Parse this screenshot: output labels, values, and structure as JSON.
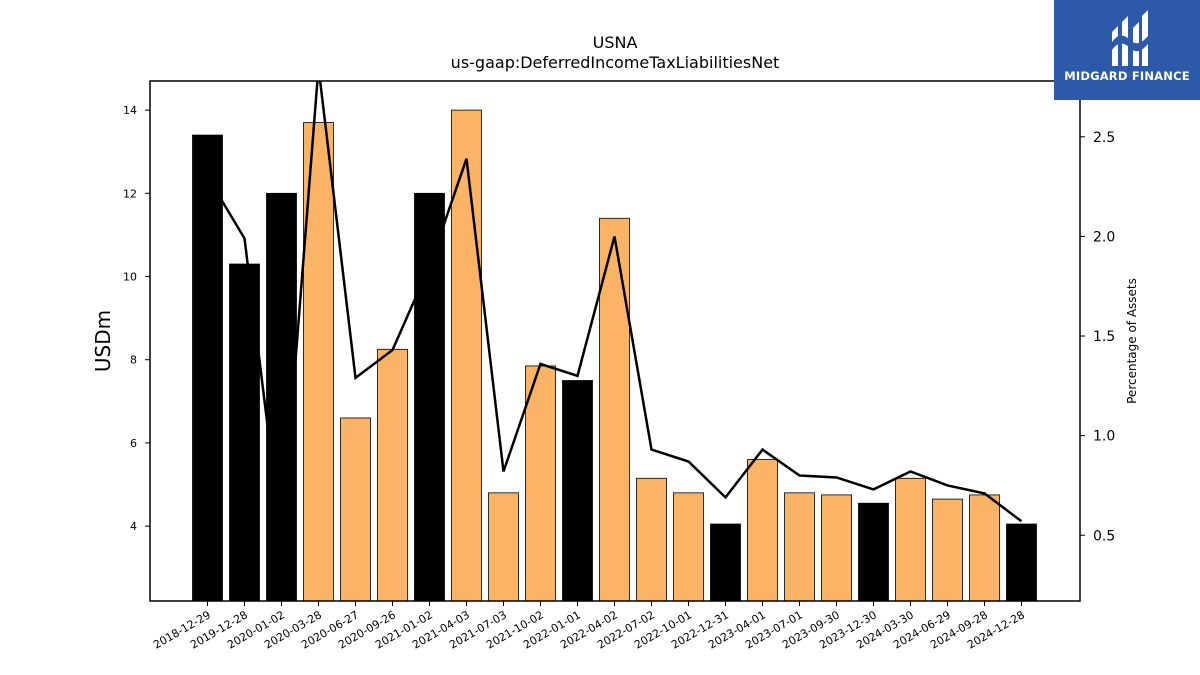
{
  "chart_data": {
    "type": "bar",
    "title": "USNA",
    "subtitle": "us-gaap:DeferredIncomeTaxLiabilitiesNet",
    "ylabel": "USDm",
    "y2label": "Percentage of Assets",
    "ylim": [
      2.2,
      14.7
    ],
    "y2lim": [
      0.17,
      2.78
    ],
    "yticks": [
      "4",
      "6",
      "8",
      "10",
      "12",
      "14"
    ],
    "y2ticks": [
      "0.5",
      "1.0",
      "1.5",
      "2.0",
      "2.5"
    ],
    "categories": [
      "2018-12-29",
      "2019-12-28",
      "2020-01-02",
      "2020-03-28",
      "2020-06-27",
      "2020-09-26",
      "2021-01-02",
      "2021-04-03",
      "2021-07-03",
      "2021-10-02",
      "2022-01-01",
      "2022-04-02",
      "2022-07-02",
      "2022-10-01",
      "2022-12-31",
      "2023-04-01",
      "2023-07-01",
      "2023-09-30",
      "2023-12-30",
      "2024-03-30",
      "2024-06-29",
      "2024-09-28",
      "2024-12-28"
    ],
    "series": [
      {
        "type": "bar",
        "values": [
          13.4,
          10.3,
          12.0,
          13.7,
          6.6,
          8.25,
          12.0,
          14.0,
          4.8,
          7.85,
          7.5,
          11.4,
          5.15,
          4.8,
          4.05,
          5.6,
          4.8,
          4.75,
          4.55,
          5.15,
          4.65,
          4.75,
          4.05
        ],
        "annual": [
          true,
          true,
          true,
          false,
          false,
          false,
          true,
          false,
          false,
          false,
          true,
          false,
          false,
          false,
          true,
          false,
          false,
          false,
          true,
          false,
          false,
          false,
          true
        ]
      },
      {
        "type": "line",
        "values": [
          2.3,
          1.99,
          0.48,
          2.85,
          1.29,
          1.43,
          1.85,
          2.39,
          0.82,
          1.36,
          1.3,
          2.0,
          0.93,
          0.87,
          0.69,
          0.93,
          0.8,
          0.79,
          0.73,
          0.82,
          0.75,
          0.71,
          0.57
        ]
      }
    ],
    "colors": {
      "annual": "#000000",
      "quarterly": "#fbb366",
      "line": "#000000"
    }
  },
  "logo": {
    "text": "MIDGARD FINANCE",
    "background": "#2d5aa8"
  }
}
